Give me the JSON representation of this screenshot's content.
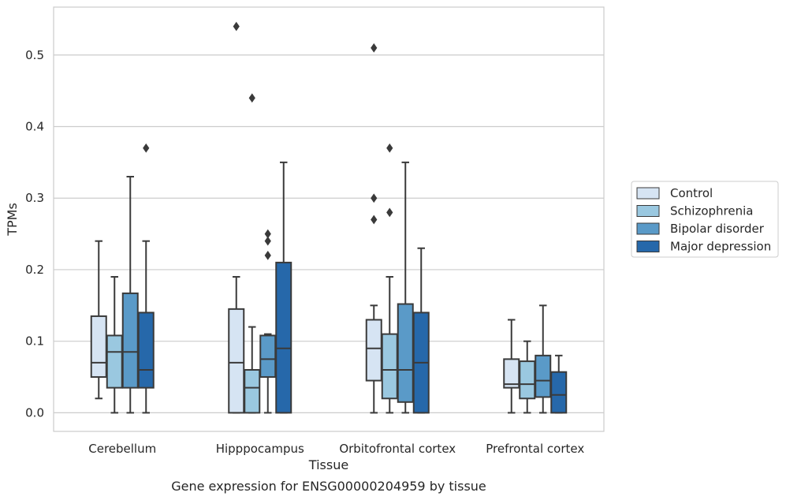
{
  "chart_data": {
    "type": "box",
    "caption": "Gene expression for ENSG00000204959 by tissue",
    "xlabel": "Tissue",
    "ylabel": "TPMs",
    "ylim": [
      -0.026,
      0.567
    ],
    "yticks": [
      0.0,
      0.1,
      0.2,
      0.3,
      0.4,
      0.5
    ],
    "ytick_labels": [
      "0.0",
      "0.1",
      "0.2",
      "0.3",
      "0.4",
      "0.5"
    ],
    "grid": "horizontal",
    "legend_position": "right",
    "categories": [
      "Cerebellum",
      "Hipppocampus",
      "Orbitofrontal cortex",
      "Prefrontal cortex"
    ],
    "series": [
      {
        "name": "Control",
        "color": "#d6e4f3",
        "boxes": [
          {
            "whislo": 0.02,
            "q1": 0.05,
            "med": 0.07,
            "q3": 0.135,
            "whishi": 0.24,
            "fliers": []
          },
          {
            "whislo": 0.0,
            "q1": 0.0,
            "med": 0.07,
            "q3": 0.145,
            "whishi": 0.19,
            "fliers": [
              0.54
            ]
          },
          {
            "whislo": 0.0,
            "q1": 0.045,
            "med": 0.09,
            "q3": 0.13,
            "whishi": 0.15,
            "fliers": [
              0.51,
              0.3,
              0.27
            ]
          },
          {
            "whislo": 0.0,
            "q1": 0.035,
            "med": 0.04,
            "q3": 0.075,
            "whishi": 0.13,
            "fliers": []
          }
        ]
      },
      {
        "name": "Schizophrenia",
        "color": "#9ac8e0",
        "boxes": [
          {
            "whislo": 0.0,
            "q1": 0.035,
            "med": 0.085,
            "q3": 0.108,
            "whishi": 0.19,
            "fliers": []
          },
          {
            "whislo": 0.0,
            "q1": 0.0,
            "med": 0.035,
            "q3": 0.06,
            "whishi": 0.12,
            "fliers": [
              0.44
            ]
          },
          {
            "whislo": 0.0,
            "q1": 0.02,
            "med": 0.06,
            "q3": 0.11,
            "whishi": 0.19,
            "fliers": [
              0.37,
              0.28
            ]
          },
          {
            "whislo": 0.0,
            "q1": 0.02,
            "med": 0.04,
            "q3": 0.072,
            "whishi": 0.1,
            "fliers": []
          }
        ]
      },
      {
        "name": "Bipolar disorder",
        "color": "#5a9ac8",
        "boxes": [
          {
            "whislo": 0.0,
            "q1": 0.035,
            "med": 0.085,
            "q3": 0.167,
            "whishi": 0.33,
            "fliers": []
          },
          {
            "whislo": 0.0,
            "q1": 0.05,
            "med": 0.075,
            "q3": 0.108,
            "whishi": 0.11,
            "fliers": [
              0.25,
              0.24,
              0.22
            ]
          },
          {
            "whislo": 0.0,
            "q1": 0.015,
            "med": 0.06,
            "q3": 0.152,
            "whishi": 0.35,
            "fliers": []
          },
          {
            "whislo": 0.0,
            "q1": 0.022,
            "med": 0.045,
            "q3": 0.08,
            "whishi": 0.15,
            "fliers": []
          }
        ]
      },
      {
        "name": "Major depression",
        "color": "#2668aa",
        "boxes": [
          {
            "whislo": 0.0,
            "q1": 0.035,
            "med": 0.06,
            "q3": 0.14,
            "whishi": 0.24,
            "fliers": [
              0.37
            ]
          },
          {
            "whislo": 0.0,
            "q1": 0.0,
            "med": 0.09,
            "q3": 0.21,
            "whishi": 0.35,
            "fliers": []
          },
          {
            "whislo": 0.0,
            "q1": 0.0,
            "med": 0.07,
            "q3": 0.14,
            "whishi": 0.23,
            "fliers": []
          },
          {
            "whislo": 0.0,
            "q1": 0.0,
            "med": 0.025,
            "q3": 0.057,
            "whishi": 0.08,
            "fliers": []
          }
        ]
      }
    ]
  }
}
